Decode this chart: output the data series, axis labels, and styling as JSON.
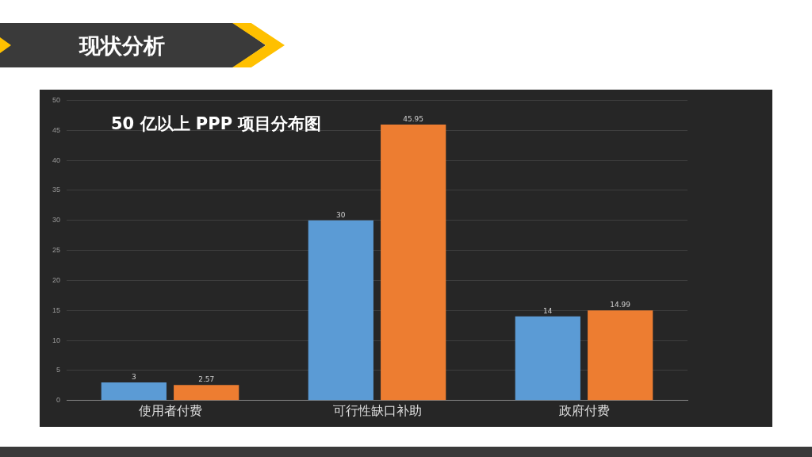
{
  "chart_data": {
    "type": "bar",
    "title": "现状分析",
    "subtitle": "50 亿以上 PPP 项目分布图",
    "categories": [
      "使用者付费",
      "可行性缺口补助",
      "政府付费"
    ],
    "series": [
      {
        "color": "#5b9bd5",
        "values": [
          3,
          30,
          14
        ]
      },
      {
        "color": "#ed7d31",
        "values": [
          2.57,
          45.95,
          14.99
        ]
      }
    ],
    "ylim": [
      0,
      50
    ],
    "yticks": [
      0,
      5,
      10,
      15,
      20,
      25,
      30,
      35,
      40,
      45,
      50
    ],
    "grid": "y",
    "data_labels": true,
    "legend": false
  }
}
